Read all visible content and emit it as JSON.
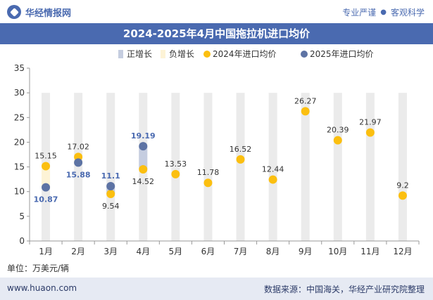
{
  "header": {
    "brand": "华经情报网",
    "slogan_left": "专业严谨",
    "slogan_sep": "●",
    "slogan_right": "客观科学"
  },
  "footer": {
    "site": "www.huaon.com",
    "source": "数据来源：中国海关，华经产业研究院整理"
  },
  "colors": {
    "brand": "#4a6ab0",
    "bg_bar": "#ebebeb",
    "positive": "#c5cde0",
    "negative": "#fdf3d6",
    "y2024": "#fbbf10",
    "y2025": "#5d73a4"
  },
  "chart_data": {
    "type": "line",
    "title": "2024-2025年4月中国拖拉机进口均价",
    "unit_label": "单位：万美元/辆",
    "categories": [
      "1月",
      "2月",
      "3月",
      "4月",
      "5月",
      "6月",
      "7月",
      "8月",
      "9月",
      "10月",
      "11月",
      "12月"
    ],
    "series": [
      {
        "name": "2024年进口均价",
        "values": [
          15.15,
          17.02,
          9.54,
          14.52,
          13.53,
          11.78,
          16.52,
          12.44,
          26.27,
          20.39,
          21.97,
          9.2
        ]
      },
      {
        "name": "2025年进口均价",
        "values": [
          10.87,
          15.88,
          11.1,
          19.19,
          null,
          null,
          null,
          null,
          null,
          null,
          null,
          null
        ]
      }
    ],
    "legend": [
      "正增长",
      "负增长",
      "2024年进口均价",
      "2025年进口均价"
    ],
    "legend_position": "top",
    "ylim": [
      0,
      35
    ],
    "yticks": [
      0,
      5,
      10,
      15,
      20,
      25,
      30,
      35
    ],
    "grid": false
  }
}
